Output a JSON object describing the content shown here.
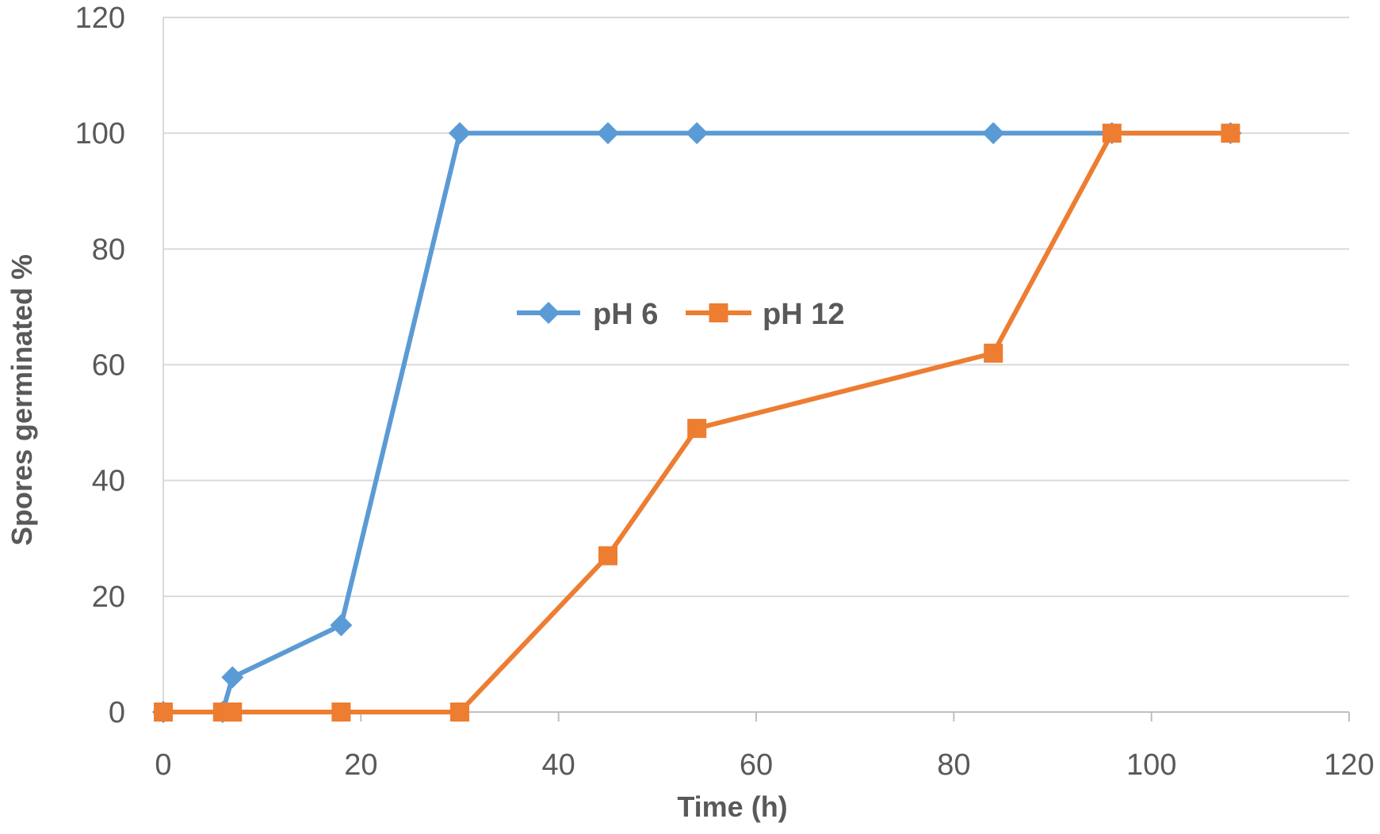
{
  "chart_data": {
    "type": "line",
    "title": "",
    "xlabel": "Time (h)",
    "ylabel": "Spores germinated %",
    "xlim": [
      0,
      120
    ],
    "ylim": [
      0,
      120
    ],
    "x_ticks": [
      0,
      20,
      40,
      60,
      80,
      100,
      120
    ],
    "y_ticks": [
      0,
      20,
      40,
      60,
      80,
      100,
      120
    ],
    "grid": "horizontal",
    "legend_position": "center",
    "series": [
      {
        "name": "pH 6",
        "color": "#5B9BD5",
        "marker": "diamond",
        "points": [
          [
            0,
            0
          ],
          [
            6,
            0
          ],
          [
            7,
            6
          ],
          [
            18,
            15
          ],
          [
            30,
            100
          ],
          [
            45,
            100
          ],
          [
            54,
            100
          ],
          [
            84,
            100
          ],
          [
            96,
            100
          ],
          [
            108,
            100
          ]
        ]
      },
      {
        "name": "pH 12",
        "color": "#ED7D31",
        "marker": "square",
        "points": [
          [
            0,
            0
          ],
          [
            6,
            0
          ],
          [
            7,
            0
          ],
          [
            18,
            0
          ],
          [
            30,
            0
          ],
          [
            45,
            27
          ],
          [
            54,
            49
          ],
          [
            84,
            62
          ],
          [
            96,
            100
          ],
          [
            108,
            100
          ]
        ]
      }
    ]
  }
}
